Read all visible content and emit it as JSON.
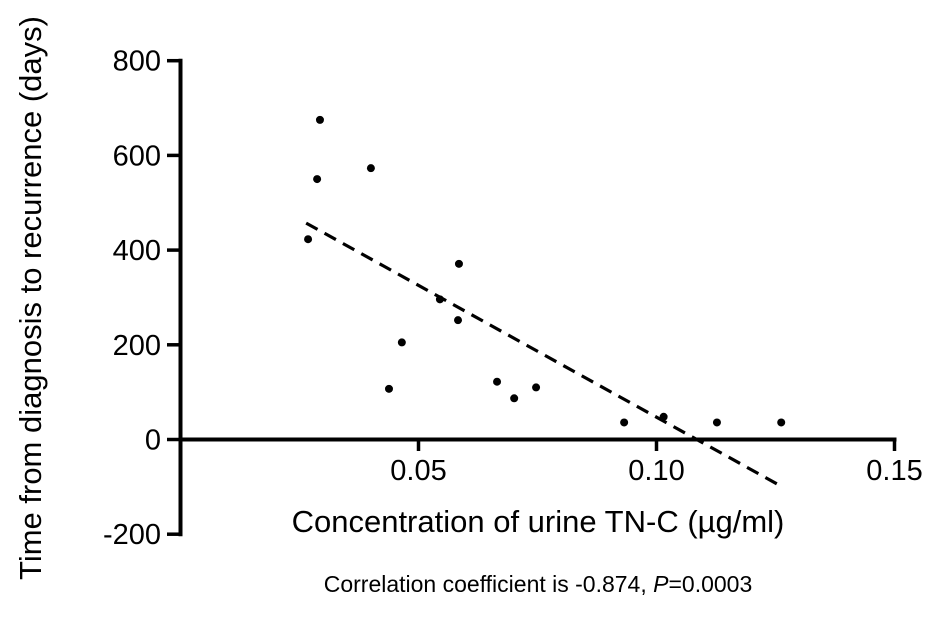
{
  "figure": {
    "background_color": "#ffffff",
    "ink_color": "#000000",
    "y_axis_label": "Time from diagnosis to recurrence (days)",
    "x_axis_label": "Concentration of urine TN-C (µg/ml)",
    "caption": {
      "prefix": "Correlation coefficient is -0.874, ",
      "italic": "P",
      "suffix": "=0.0003"
    }
  },
  "chart_data": {
    "type": "scatter",
    "title": "",
    "xlabel": "Concentration of urine TN-C (µg/ml)",
    "ylabel": "Time from diagnosis to recurrence (days)",
    "annotation": "Correlation coefficient is -0.874, P=0.0003",
    "correlation_coefficient": -0.874,
    "p_value": 0.0003,
    "xlim": [
      0,
      0.15
    ],
    "ylim": [
      -200,
      800
    ],
    "x_ticks": [
      0.05,
      0.1,
      0.15
    ],
    "x_tick_labels": [
      "0.05",
      "0.10",
      "0.15"
    ],
    "y_ticks": [
      800,
      600,
      400,
      200,
      0,
      -200
    ],
    "grid": false,
    "legend": "none",
    "point_color": "#000000",
    "points": [
      [
        0.0293,
        675
      ],
      [
        0.0287,
        550
      ],
      [
        0.0268,
        423
      ],
      [
        0.04,
        573
      ],
      [
        0.0465,
        205
      ],
      [
        0.0438,
        107
      ],
      [
        0.0545,
        296
      ],
      [
        0.0583,
        252
      ],
      [
        0.0585,
        371
      ],
      [
        0.0665,
        122
      ],
      [
        0.0701,
        87
      ],
      [
        0.0747,
        110
      ],
      [
        0.0932,
        36
      ],
      [
        0.1015,
        48
      ],
      [
        0.1127,
        36
      ],
      [
        0.1262,
        36
      ]
    ],
    "trendline": {
      "style": "dashed",
      "x1": 0.0264,
      "y1": 457,
      "x2": 0.1266,
      "y2": -101
    }
  }
}
